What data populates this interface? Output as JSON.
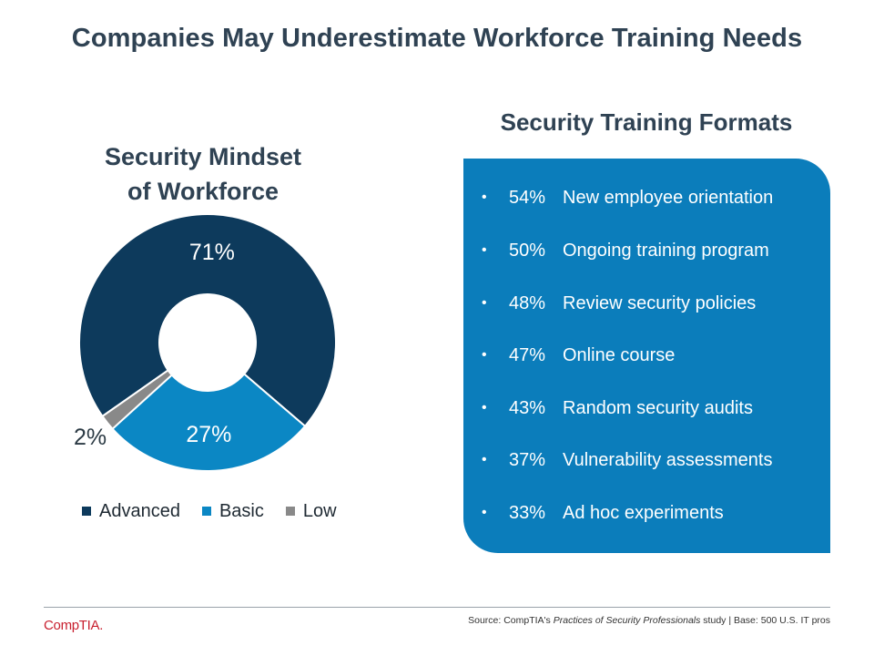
{
  "slide": {
    "title": "Companies May Underestimate Workforce Training Needs"
  },
  "chart_data": [
    {
      "type": "pie",
      "donut": true,
      "title_lines": [
        "Security Mindset",
        "of Workforce"
      ],
      "categories": [
        "Advanced",
        "Basic",
        "Low"
      ],
      "values": [
        71,
        27,
        2
      ],
      "data_labels": [
        "71%",
        "27%",
        "2%"
      ],
      "colors": [
        "#0d3a5c",
        "#0b87c4",
        "#898989"
      ],
      "legend": "bottom"
    },
    {
      "type": "table",
      "title": "Security Training Formats",
      "rows": [
        {
          "value": "54%",
          "label": "New employee orientation"
        },
        {
          "value": "50%",
          "label": "Ongoing training program"
        },
        {
          "value": "48%",
          "label": "Review security policies"
        },
        {
          "value": "47%",
          "label": "Online course"
        },
        {
          "value": "43%",
          "label": "Random security audits"
        },
        {
          "value": "37%",
          "label": "Vulnerability assessments"
        },
        {
          "value": "33%",
          "label": "Ad hoc experiments"
        }
      ],
      "bullet": "•",
      "panel_color": "#0b7dbb"
    }
  ],
  "footer": {
    "logo_text": "CompTIA.",
    "source_prefix": "Source: CompTIA's ",
    "source_study": "Practices of Security Professionals",
    "source_suffix": " study | Base: 500 U.S. IT pros"
  }
}
